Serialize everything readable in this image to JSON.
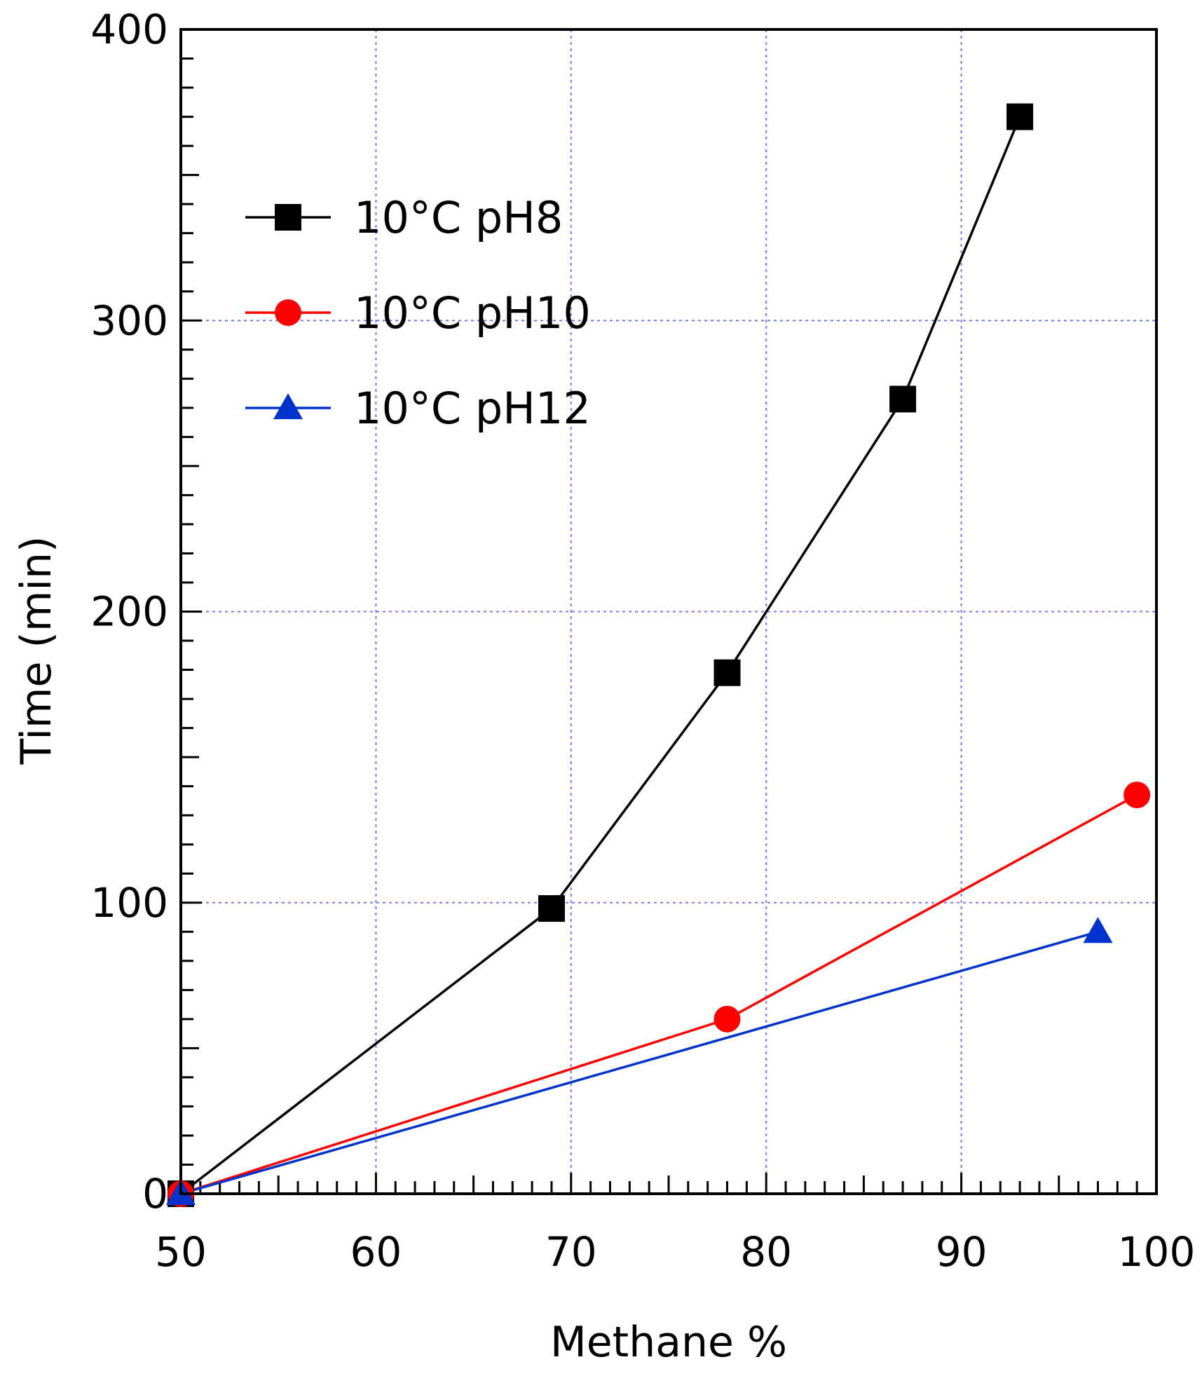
{
  "chart_data": {
    "type": "line",
    "title": "",
    "xlabel": "Methane %",
    "ylabel": "Time (min)",
    "xlim": [
      50,
      100
    ],
    "ylim": [
      0,
      400
    ],
    "x_ticks": [
      50,
      60,
      70,
      80,
      90,
      100
    ],
    "y_ticks": [
      0,
      100,
      200,
      300,
      400
    ],
    "x_tick_labels": [
      "50",
      "60",
      "70",
      "80",
      "90",
      "100"
    ],
    "y_tick_labels": [
      "0",
      "100",
      "200",
      "300",
      "400"
    ],
    "grid": true,
    "legend_position": "top-left",
    "series": [
      {
        "name": "10°C pH8",
        "color": "#000000",
        "marker": "square",
        "x": [
          50,
          69,
          78,
          87,
          93
        ],
        "y": [
          0,
          98,
          179,
          273,
          370
        ]
      },
      {
        "name": "10°C pH10",
        "color": "#ff0000",
        "marker": "circle",
        "x": [
          50,
          78,
          99
        ],
        "y": [
          0,
          60,
          137
        ]
      },
      {
        "name": "10°C pH12",
        "color": "#0033cc",
        "marker": "triangle",
        "x": [
          50,
          97
        ],
        "y": [
          0,
          90
        ]
      }
    ]
  }
}
